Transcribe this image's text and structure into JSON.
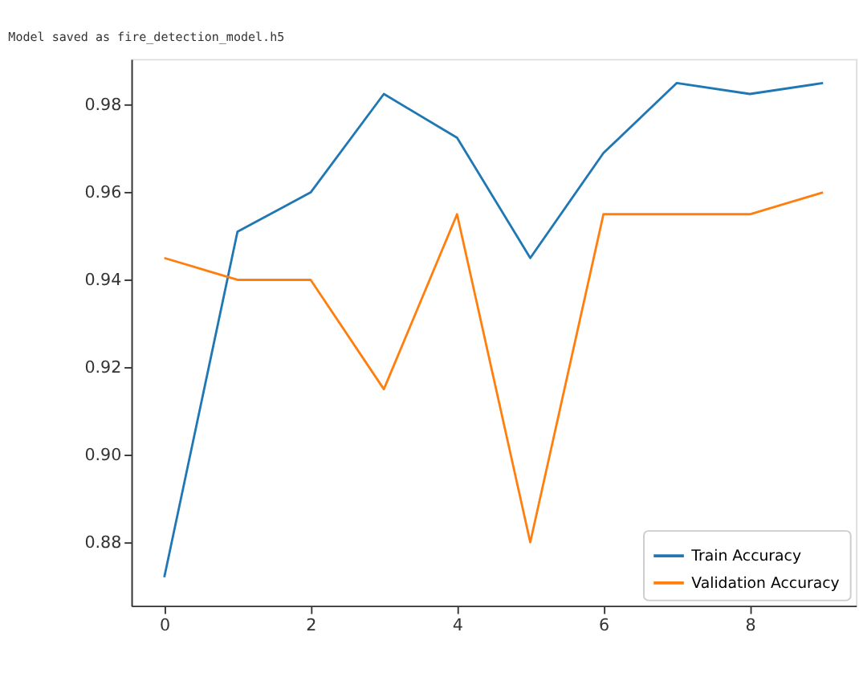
{
  "chart_data": {
    "type": "line",
    "title": "Model saved as fire_detection_model.h5",
    "x": [
      0,
      1,
      2,
      3,
      4,
      5,
      6,
      7,
      8,
      9
    ],
    "series": [
      {
        "name": "Train Accuracy",
        "color": "#1f77b4",
        "values": [
          0.872,
          0.951,
          0.96,
          0.9825,
          0.9725,
          0.945,
          0.969,
          0.985,
          0.9825,
          0.985
        ]
      },
      {
        "name": "Validation Accuracy",
        "color": "#ff7f0e",
        "values": [
          0.945,
          0.94,
          0.94,
          0.915,
          0.955,
          0.88,
          0.955,
          0.955,
          0.955,
          0.96
        ]
      }
    ],
    "xlim": [
      -0.45,
      9.45
    ],
    "xticks": [
      0,
      2,
      4,
      6,
      8
    ],
    "ylim": [
      0.8655,
      0.9905
    ],
    "yticks": [
      {
        "value": 0.88,
        "label": "0.88"
      },
      {
        "value": 0.9,
        "label": "0.90"
      },
      {
        "value": 0.92,
        "label": "0.92"
      },
      {
        "value": 0.94,
        "label": "0.94"
      },
      {
        "value": 0.96,
        "label": "0.96"
      },
      {
        "value": 0.98,
        "label": "0.98"
      }
    ],
    "grid": false,
    "legend": "bottom right",
    "marker": "none",
    "line_style": "solid"
  }
}
